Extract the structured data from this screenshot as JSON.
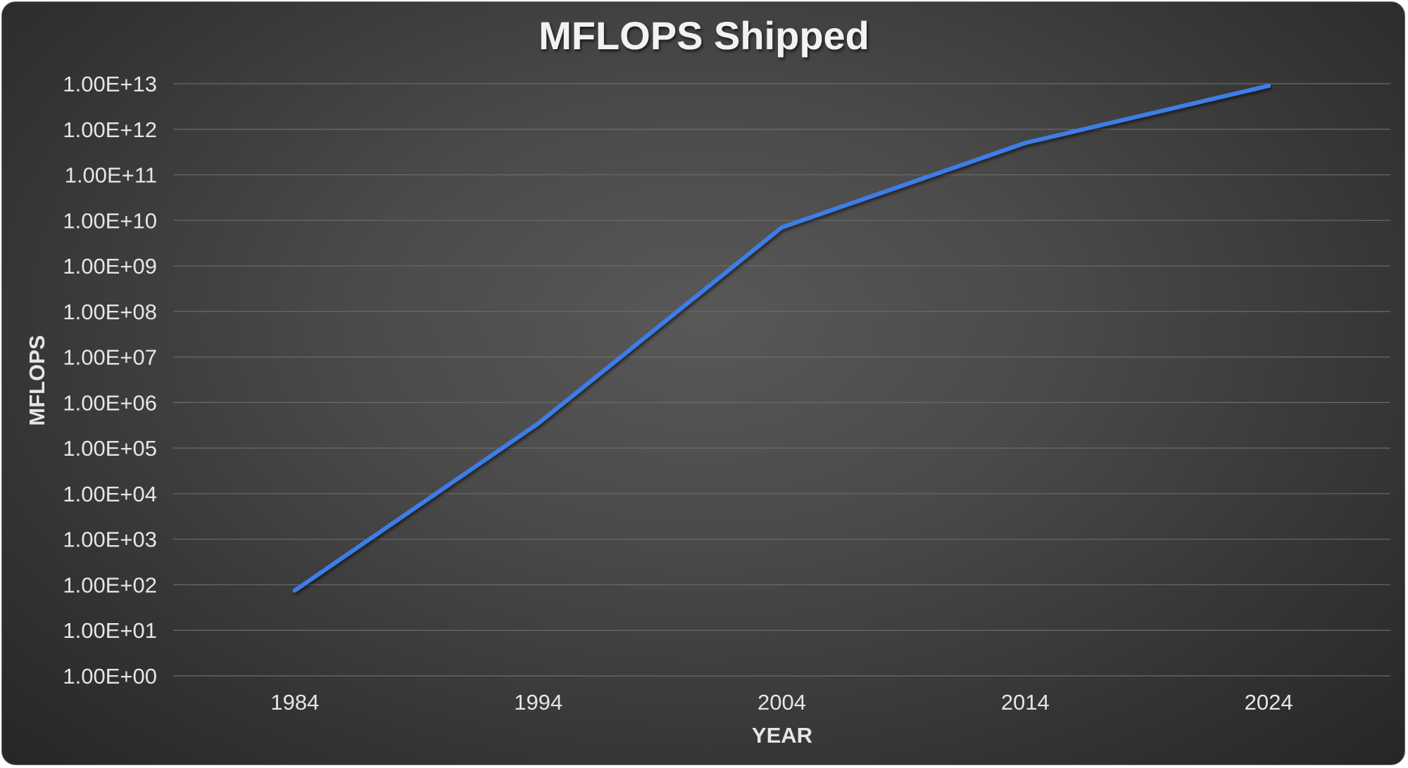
{
  "chart_data": {
    "type": "line",
    "title": "MFLOPS Shipped",
    "xlabel": "YEAR",
    "ylabel": "MFLOPS",
    "yscale": "log",
    "ylim": [
      1,
      10000000000000.0
    ],
    "grid": true,
    "legend": "none",
    "categories": [
      "1984",
      "1994",
      "2004",
      "2014",
      "2024"
    ],
    "y_tick_labels": [
      "1.00E+00",
      "1.00E+01",
      "1.00E+02",
      "1.00E+03",
      "1.00E+04",
      "1.00E+05",
      "1.00E+06",
      "1.00E+07",
      "1.00E+08",
      "1.00E+09",
      "1.00E+10",
      "1.00E+11",
      "1.00E+12",
      "1.00E+13"
    ],
    "series": [
      {
        "name": "MFLOPS",
        "color": "#3d7de8",
        "values": [
          75,
          350000,
          7000000000,
          500000000000,
          9000000000000
        ]
      }
    ]
  }
}
